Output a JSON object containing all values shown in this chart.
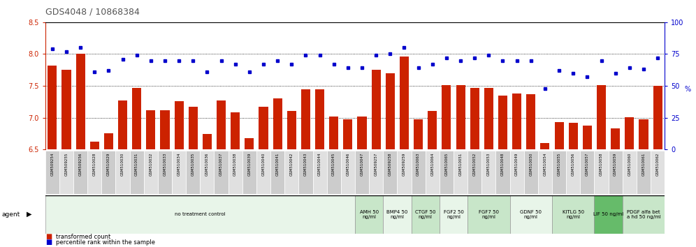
{
  "title": "GDS4048 / 10868384",
  "ylim_left": [
    6.5,
    8.5
  ],
  "ylim_right": [
    0,
    100
  ],
  "yticks_left": [
    6.5,
    7.0,
    7.5,
    8.0,
    8.5
  ],
  "yticks_right": [
    0,
    25,
    50,
    75,
    100
  ],
  "samples": [
    "GSM509254",
    "GSM509255",
    "GSM509256",
    "GSM510028",
    "GSM510029",
    "GSM510030",
    "GSM510031",
    "GSM510032",
    "GSM510033",
    "GSM510034",
    "GSM510035",
    "GSM510036",
    "GSM510037",
    "GSM510038",
    "GSM510039",
    "GSM510040",
    "GSM510041",
    "GSM510042",
    "GSM510043",
    "GSM510044",
    "GSM510045",
    "GSM510046",
    "GSM510047",
    "GSM509257",
    "GSM509258",
    "GSM509259",
    "GSM510063",
    "GSM510064",
    "GSM510065",
    "GSM510051",
    "GSM510052",
    "GSM510053",
    "GSM510048",
    "GSM510049",
    "GSM510050",
    "GSM510054",
    "GSM510055",
    "GSM510056",
    "GSM510057",
    "GSM510058",
    "GSM510059",
    "GSM510060",
    "GSM510061",
    "GSM510062"
  ],
  "bar_values": [
    7.82,
    7.75,
    8.01,
    6.62,
    6.75,
    7.27,
    7.47,
    7.12,
    7.12,
    7.26,
    7.17,
    6.74,
    7.27,
    7.08,
    6.68,
    7.17,
    7.3,
    7.11,
    7.44,
    7.44,
    7.02,
    6.97,
    7.02,
    7.75,
    7.7,
    7.96,
    6.97,
    7.1,
    7.51,
    7.51,
    7.47,
    7.47,
    7.35,
    7.38,
    7.37,
    6.6,
    6.93,
    6.92,
    6.88,
    7.51,
    6.83,
    7.01,
    6.97,
    7.5
  ],
  "dot_values": [
    79,
    77,
    80,
    61,
    62,
    71,
    74,
    70,
    70,
    70,
    70,
    61,
    70,
    67,
    61,
    67,
    70,
    67,
    74,
    74,
    67,
    64,
    64,
    74,
    75,
    80,
    64,
    67,
    72,
    70,
    72,
    74,
    70,
    70,
    70,
    48,
    62,
    60,
    57,
    70,
    60,
    64,
    63,
    72
  ],
  "agent_groups": [
    {
      "label": "no treatment control",
      "start": 0,
      "end": 22,
      "color": "#e8f5e9"
    },
    {
      "label": "AMH 50\nng/ml",
      "start": 22,
      "end": 24,
      "color": "#c8e6c9"
    },
    {
      "label": "BMP4 50\nng/ml",
      "start": 24,
      "end": 26,
      "color": "#e8f5e9"
    },
    {
      "label": "CTGF 50\nng/ml",
      "start": 26,
      "end": 28,
      "color": "#c8e6c9"
    },
    {
      "label": "FGF2 50\nng/ml",
      "start": 28,
      "end": 30,
      "color": "#e8f5e9"
    },
    {
      "label": "FGF7 50\nng/ml",
      "start": 30,
      "end": 33,
      "color": "#c8e6c9"
    },
    {
      "label": "GDNF 50\nng/ml",
      "start": 33,
      "end": 36,
      "color": "#e8f5e9"
    },
    {
      "label": "KITLG 50\nng/ml",
      "start": 36,
      "end": 39,
      "color": "#c8e6c9"
    },
    {
      "label": "LIF 50 ng/ml",
      "start": 39,
      "end": 41,
      "color": "#66bb6a"
    },
    {
      "label": "PDGF alfa bet\na hd 50 ng/ml",
      "start": 41,
      "end": 44,
      "color": "#c8e6c9"
    }
  ],
  "bar_color": "#cc2200",
  "dot_color": "#0000cc",
  "title_color": "#555555",
  "axis_color": "#cc2200",
  "right_axis_color": "#0000cc",
  "background_color": "#ffffff",
  "label_bg_color_odd": "#cccccc",
  "label_bg_color_even": "#e0e0e0"
}
